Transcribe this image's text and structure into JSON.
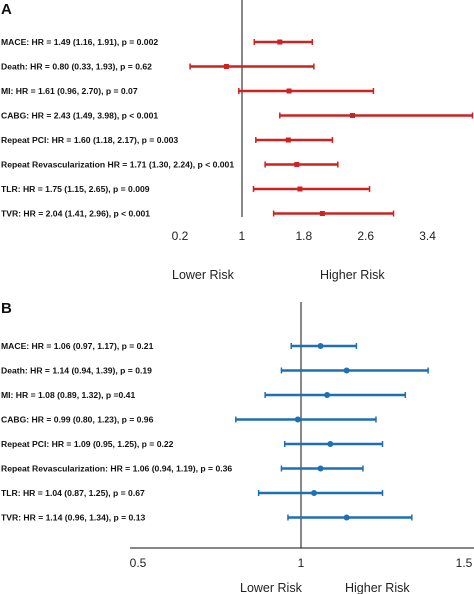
{
  "chart_data": [
    {
      "type": "forest",
      "panel": "A",
      "color": "#cc2222",
      "x_ticks": [
        "0.2",
        "1",
        "1.8",
        "2.6",
        "3.4"
      ],
      "xlim": [
        0.2,
        4.0
      ],
      "reference_line": 1,
      "lower_label": "Lower Risk",
      "higher_label": "Higher Risk",
      "rows": [
        {
          "label": "MACE: HR = 1.49 (1.16, 1.91), p = 0.002",
          "hr": 1.49,
          "low": 1.16,
          "high": 1.91
        },
        {
          "label": "Death: HR = 0.80 (0.33, 1.93), p = 0.62",
          "hr": 0.8,
          "low": 0.33,
          "high": 1.93
        },
        {
          "label": "MI: HR = 1.61 (0.96, 2.70), p = 0.07",
          "hr": 1.61,
          "low": 0.96,
          "high": 2.7
        },
        {
          "label": "CABG: HR = 2.43 (1.49, 3.98), p < 0.001",
          "hr": 2.43,
          "low": 1.49,
          "high": 3.98
        },
        {
          "label": "Repeat PCI: HR = 1.60 (1.18, 2.17), p = 0.003",
          "hr": 1.6,
          "low": 1.18,
          "high": 2.17
        },
        {
          "label": "Repeat Revascularization HR = 1.71 (1.30, 2.24), p < 0.001",
          "hr": 1.71,
          "low": 1.3,
          "high": 2.24
        },
        {
          "label": "TLR: HR = 1.75 (1.15, 2.65), p = 0.009",
          "hr": 1.75,
          "low": 1.15,
          "high": 2.65
        },
        {
          "label": "TVR: HR = 2.04 (1.41, 2.96), p < 0.001",
          "hr": 2.04,
          "low": 1.41,
          "high": 2.96
        }
      ]
    },
    {
      "type": "forest",
      "panel": "B",
      "color": "#1f6fb5",
      "x_ticks": [
        "0.5",
        "1",
        "1.5"
      ],
      "xlim": [
        0.5,
        1.5
      ],
      "reference_line": 1,
      "lower_label": "Lower Risk",
      "higher_label": "Higher Risk",
      "rows": [
        {
          "label": "MACE: HR = 1.06 (0.97, 1.17), p = 0.21",
          "hr": 1.06,
          "low": 0.97,
          "high": 1.17
        },
        {
          "label": "Death: HR = 1.14 (0.94, 1.39), p = 0.19",
          "hr": 1.14,
          "low": 0.94,
          "high": 1.39
        },
        {
          "label": "MI: HR = 1.08 (0.89, 1.32), p  =0.41",
          "hr": 1.08,
          "low": 0.89,
          "high": 1.32
        },
        {
          "label": "CABG: HR = 0.99 (0.80, 1.23), p = 0.96",
          "hr": 0.99,
          "low": 0.8,
          "high": 1.23
        },
        {
          "label": "Repeat PCI: HR = 1.09 (0.95, 1.25), p = 0.22",
          "hr": 1.09,
          "low": 0.95,
          "high": 1.25
        },
        {
          "label": "Repeat Revascularization: HR = 1.06 (0.94, 1.19), p = 0.36",
          "hr": 1.06,
          "low": 0.94,
          "high": 1.19
        },
        {
          "label": "TLR: HR = 1.04 (0.87, 1.25), p = 0.67",
          "hr": 1.04,
          "low": 0.87,
          "high": 1.25
        },
        {
          "label": "TVR: HR = 1.14 (0.96, 1.34), p = 0.13",
          "hr": 1.14,
          "low": 0.96,
          "high": 1.34
        }
      ]
    }
  ]
}
